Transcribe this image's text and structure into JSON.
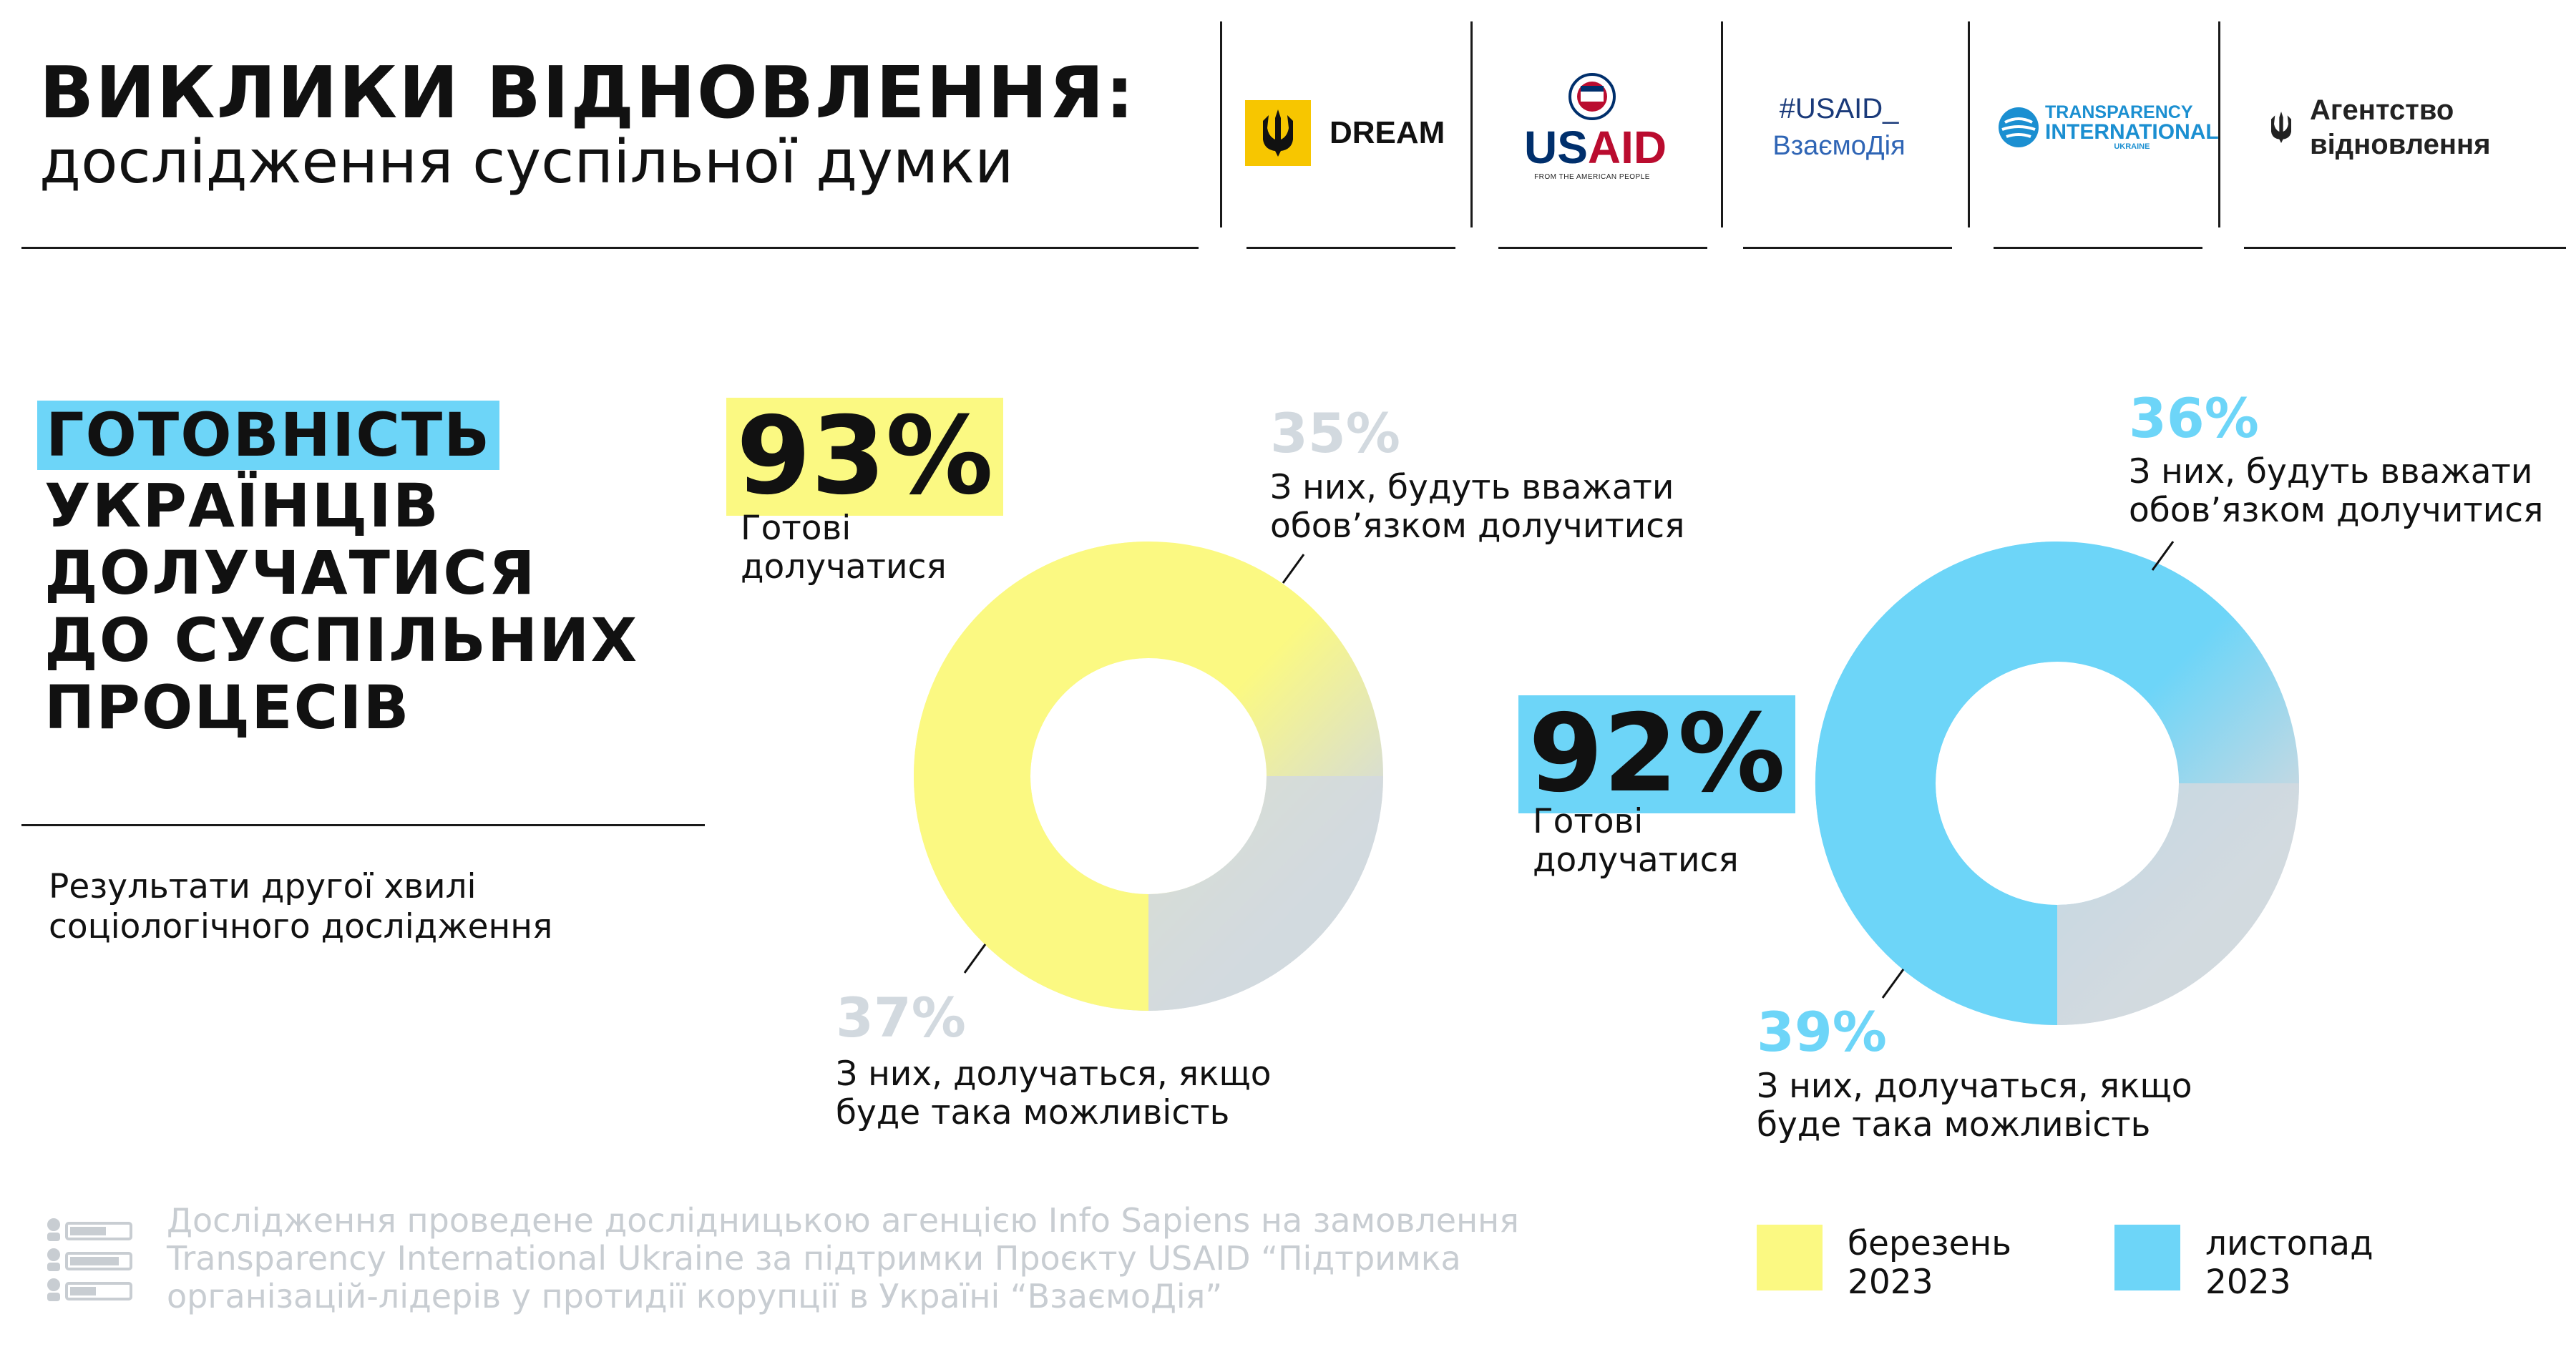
{
  "header": {
    "title": "ВИКЛИКИ ВІДНОВЛЕННЯ:",
    "subtitle": "дослідження суспільної думки"
  },
  "logos": {
    "dream": "DREAM",
    "usaid": {
      "word_u": "US",
      "word_aid": "AID",
      "tagline": "FROM THE AMERICAN PEOPLE"
    },
    "vzaemodia": {
      "line1": "#USAID_",
      "line2": "ВзаємоДія"
    },
    "ti": {
      "line1": "TRANSPARENCY",
      "line2": "INTERNATIONAL",
      "line3": "UKRAINE"
    },
    "agency": {
      "line1": "Агентство",
      "line2": "відновлення"
    }
  },
  "left": {
    "highlight": "ГОТОВНІСТЬ",
    "lines": [
      "УКРАЇНЦІВ",
      "ДОЛУЧАТИСЯ",
      "ДО СУСПІЛЬНИХ",
      "ПРОЦЕСІВ"
    ],
    "description_line1": "Результати другої хвилі",
    "description_line2": "соціологічного дослідження"
  },
  "chart_data": [
    {
      "type": "pie",
      "title": "березень 2023",
      "total_label": "93%",
      "total_caption": "Готові долучатися",
      "slices": [
        {
          "label": "З них, будуть вважати обов’язком долучитися",
          "value": 35
        },
        {
          "label": "З них, долучаться, якщо буде така можливість",
          "value": 37
        }
      ]
    },
    {
      "type": "pie",
      "title": "листопад 2023",
      "total_label": "92%",
      "total_caption": "Готові долучатися",
      "slices": [
        {
          "label": "З них, будуть вважати обов’язком долучитися",
          "value": 36
        },
        {
          "label": "З них, долучаться, якщо буде така можливість",
          "value": 39
        }
      ]
    }
  ],
  "chart1": {
    "big_pct": "93%",
    "ready_1": "Готові",
    "ready_2": "долучатися",
    "top_pct": "35%",
    "top_note_1": "З них, будуть вважати",
    "top_note_2": "обов’язком долучитися",
    "bottom_pct": "37%",
    "bottom_note_1": "З них, долучаться, якщо",
    "bottom_note_2": "буде така можливість"
  },
  "chart2": {
    "big_pct": "92%",
    "ready_1": "Готові",
    "ready_2": "долучатися",
    "top_pct": "36%",
    "top_note_1": "З них, будуть вважати",
    "top_note_2": "обов’язком долучитися",
    "bottom_pct": "39%",
    "bottom_note_1": "З них, долучаться, якщо",
    "bottom_note_2": "буде така можливість"
  },
  "legend": [
    {
      "label_1": "березень",
      "label_2": "2023",
      "color": "#fbf982"
    },
    {
      "label_1": "листопад",
      "label_2": "2023",
      "color": "#6dd5f8"
    }
  ],
  "colors": {
    "yellow": "#fbf982",
    "blue": "#6dd5f8",
    "gray": "#d2d9df",
    "footer_gray": "#c8cdd2"
  },
  "footer": {
    "line1": "Дослідження проведене дослідницькою агенцією Info Sapiens на замовлення",
    "line2": "Transparency International Ukraine за підтримки Проєкту USAID “Підтримка",
    "line3": "організацій-лідерів у протидії корупції в Україні “ВзаємоДія”"
  }
}
